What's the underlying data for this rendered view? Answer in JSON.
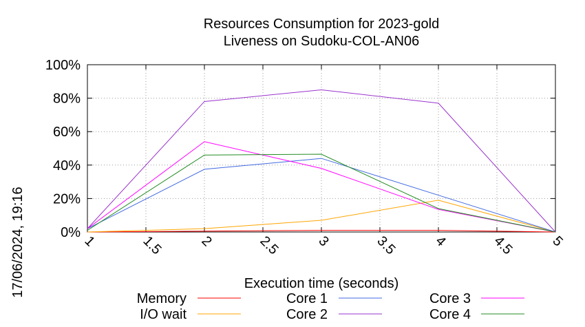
{
  "chart_data": {
    "type": "line",
    "title": [
      "Resources Consumption for 2023-gold",
      "Liveness on Sudoku-COL-AN06"
    ],
    "xlabel": "Execution time (seconds)",
    "ylabel": "",
    "timestamp": "17/06/2024, 19:16",
    "xlim": [
      1,
      5
    ],
    "ylim": [
      0,
      100
    ],
    "x_ticks": [
      1,
      1.5,
      2,
      2.5,
      3,
      3.5,
      4,
      4.5,
      5
    ],
    "x_tick_labels": [
      "1",
      "1.5",
      "2",
      "2.5",
      "3",
      "3.5",
      "4",
      "4.5",
      "5"
    ],
    "y_ticks": [
      0,
      20,
      40,
      60,
      80,
      100
    ],
    "y_tick_labels": [
      "0%",
      "20%",
      "40%",
      "60%",
      "80%",
      "100%"
    ],
    "grid": true,
    "legend_position": "bottom",
    "series": [
      {
        "name": "Memory",
        "color": "#ff0000",
        "x": [
          1,
          2,
          3,
          4,
          5
        ],
        "y": [
          0,
          0.5,
          1,
          1,
          0
        ]
      },
      {
        "name": "I/O wait",
        "color": "#ffa500",
        "x": [
          1,
          2,
          3,
          4,
          5
        ],
        "y": [
          0,
          2,
          7,
          19,
          0
        ]
      },
      {
        "name": "Core 1",
        "color": "#4169e1",
        "x": [
          1,
          2,
          3,
          4,
          5
        ],
        "y": [
          2,
          37.5,
          44,
          22,
          0
        ]
      },
      {
        "name": "Core 2",
        "color": "#9932cc",
        "x": [
          1,
          2,
          3,
          4,
          5
        ],
        "y": [
          2,
          78,
          85,
          77,
          0
        ]
      },
      {
        "name": "Core 3",
        "color": "#ff00ff",
        "x": [
          1,
          2,
          3,
          4,
          5
        ],
        "y": [
          2,
          54,
          38,
          13.5,
          0
        ]
      },
      {
        "name": "Core 4",
        "color": "#228b22",
        "x": [
          1,
          2,
          3,
          4,
          5
        ],
        "y": [
          1,
          46,
          46.5,
          14,
          0
        ]
      }
    ]
  }
}
